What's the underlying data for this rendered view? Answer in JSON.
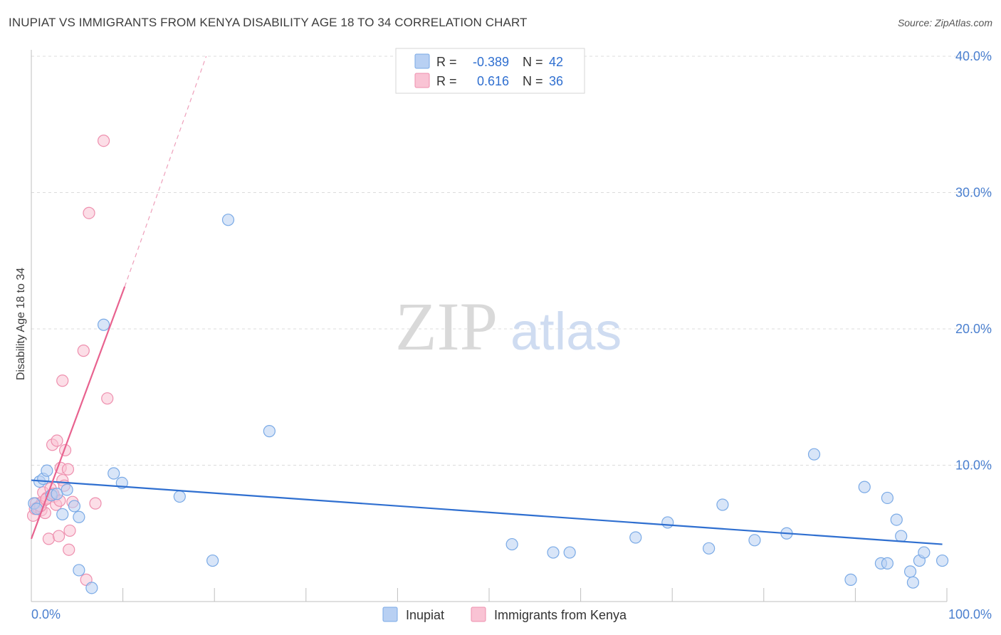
{
  "title": "INUPIAT VS IMMIGRANTS FROM KENYA DISABILITY AGE 18 TO 34 CORRELATION CHART",
  "source": "Source: ZipAtlas.com",
  "watermark": {
    "zip": "ZIP",
    "atlas": "atlas"
  },
  "legend_top": [
    {
      "r_label": "R =",
      "r_value": "-0.389",
      "n_label": "N =",
      "n_value": "42"
    },
    {
      "r_label": "R =",
      "r_value": "0.616",
      "n_label": "N =",
      "n_value": "36"
    }
  ],
  "chart_data": {
    "type": "scatter",
    "title": "INUPIAT VS IMMIGRANTS FROM KENYA DISABILITY AGE 18 TO 34 CORRELATION CHART",
    "xlabel": "",
    "ylabel": "Disability Age 18 to 34",
    "xlim": [
      0,
      100
    ],
    "ylim": [
      0,
      40
    ],
    "x_tick_labels": [
      "0.0%",
      "100.0%"
    ],
    "y_ticks": [
      10,
      20,
      30,
      40
    ],
    "y_tick_labels": [
      "10.0%",
      "20.0%",
      "30.0%",
      "40.0%"
    ],
    "series": [
      {
        "name": "Inupiat",
        "color": "#7aaae6",
        "fill": "#b8d0f3",
        "points": [
          [
            0.3,
            7.2
          ],
          [
            0.6,
            6.8
          ],
          [
            0.9,
            8.8
          ],
          [
            1.3,
            9.0
          ],
          [
            1.7,
            9.6
          ],
          [
            2.2,
            7.8
          ],
          [
            2.8,
            7.9
          ],
          [
            3.4,
            6.4
          ],
          [
            3.9,
            8.2
          ],
          [
            4.7,
            7.0
          ],
          [
            5.2,
            6.2
          ],
          [
            5.2,
            2.3
          ],
          [
            6.6,
            1.0
          ],
          [
            7.9,
            20.3
          ],
          [
            9.0,
            9.4
          ],
          [
            9.9,
            8.7
          ],
          [
            16.2,
            7.7
          ],
          [
            19.8,
            3.0
          ],
          [
            21.5,
            28.0
          ],
          [
            26.0,
            12.5
          ],
          [
            52.5,
            4.2
          ],
          [
            57.0,
            3.6
          ],
          [
            58.8,
            3.6
          ],
          [
            66.0,
            4.7
          ],
          [
            69.5,
            5.8
          ],
          [
            74.0,
            3.9
          ],
          [
            75.5,
            7.1
          ],
          [
            79.0,
            4.5
          ],
          [
            82.5,
            5.0
          ],
          [
            85.5,
            10.8
          ],
          [
            89.5,
            1.6
          ],
          [
            91.0,
            8.4
          ],
          [
            92.8,
            2.8
          ],
          [
            93.5,
            2.8
          ],
          [
            93.5,
            7.6
          ],
          [
            94.5,
            6.0
          ],
          [
            95.0,
            4.8
          ],
          [
            96.0,
            2.2
          ],
          [
            96.3,
            1.4
          ],
          [
            97.0,
            3.0
          ],
          [
            97.5,
            3.6
          ],
          [
            99.5,
            3.0
          ]
        ],
        "trend": {
          "x": [
            0,
            99.5
          ],
          "y": [
            8.9,
            4.2
          ]
        }
      },
      {
        "name": "Immigrants from Kenya",
        "color": "#ee8fae",
        "fill": "#f9c3d4",
        "points": [
          [
            0.2,
            6.3
          ],
          [
            0.4,
            6.8
          ],
          [
            0.5,
            7.2
          ],
          [
            0.7,
            6.9
          ],
          [
            0.9,
            7.0
          ],
          [
            1.1,
            6.7
          ],
          [
            1.2,
            7.3
          ],
          [
            1.3,
            8.0
          ],
          [
            1.5,
            6.5
          ],
          [
            1.7,
            7.6
          ],
          [
            1.9,
            4.6
          ],
          [
            2.1,
            8.3
          ],
          [
            2.3,
            11.5
          ],
          [
            2.5,
            7.7
          ],
          [
            2.7,
            7.1
          ],
          [
            2.8,
            11.8
          ],
          [
            3.0,
            4.8
          ],
          [
            3.2,
            9.8
          ],
          [
            3.4,
            8.9
          ],
          [
            3.6,
            8.5
          ],
          [
            3.7,
            11.1
          ],
          [
            4.0,
            9.7
          ],
          [
            4.1,
            3.8
          ],
          [
            4.2,
            5.2
          ],
          [
            4.5,
            7.3
          ],
          [
            3.4,
            16.2
          ],
          [
            5.7,
            18.4
          ],
          [
            6.0,
            1.6
          ],
          [
            6.3,
            28.5
          ],
          [
            7.0,
            7.2
          ],
          [
            7.9,
            33.8
          ],
          [
            8.3,
            14.9
          ],
          [
            1.0,
            7.0
          ],
          [
            1.6,
            7.5
          ],
          [
            2.4,
            7.9
          ],
          [
            3.1,
            7.4
          ]
        ],
        "trend": {
          "x": [
            0,
            10.2
          ],
          "y": [
            4.6,
            23.1
          ]
        },
        "trend_extension": {
          "x": [
            10.2,
            19.1
          ],
          "y": [
            23.1,
            40.0
          ]
        }
      }
    ]
  }
}
